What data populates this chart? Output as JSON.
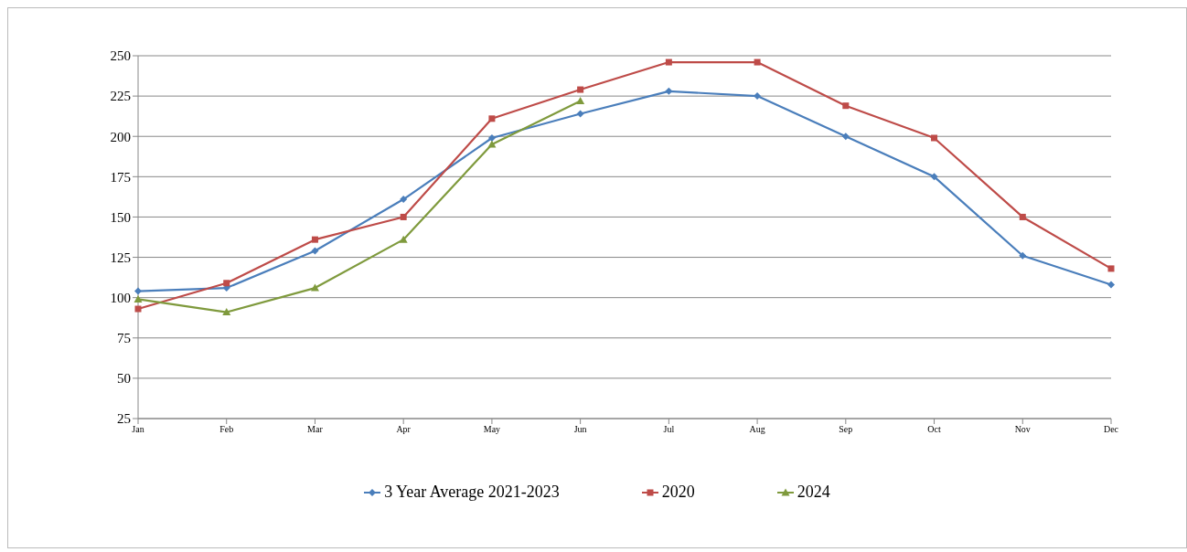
{
  "chart_data": {
    "type": "line",
    "categories": [
      "Jan",
      "Feb",
      "Mar",
      "Apr",
      "May",
      "Jun",
      "Jul",
      "Aug",
      "Sep",
      "Oct",
      "Nov",
      "Dec"
    ],
    "series": [
      {
        "name": "3 Year Average 2021-2023",
        "color": "#4a7ebb",
        "marker": "diamond",
        "values": [
          104,
          106,
          129,
          161,
          199,
          214,
          228,
          225,
          200,
          175,
          126,
          108
        ]
      },
      {
        "name": "2020",
        "color": "#be4b48",
        "marker": "square",
        "values": [
          93,
          109,
          136,
          150,
          211,
          229,
          246,
          246,
          219,
          199,
          150,
          118
        ]
      },
      {
        "name": "2024",
        "color": "#7f9a3d",
        "marker": "triangle",
        "values": [
          99,
          91,
          106,
          136,
          195,
          222,
          null,
          null,
          null,
          null,
          null,
          null
        ]
      }
    ],
    "ylim": [
      25,
      250
    ],
    "yticks": [
      25,
      50,
      75,
      100,
      125,
      150,
      175,
      200,
      225,
      250
    ],
    "grid": "y",
    "legend": "bottom"
  }
}
